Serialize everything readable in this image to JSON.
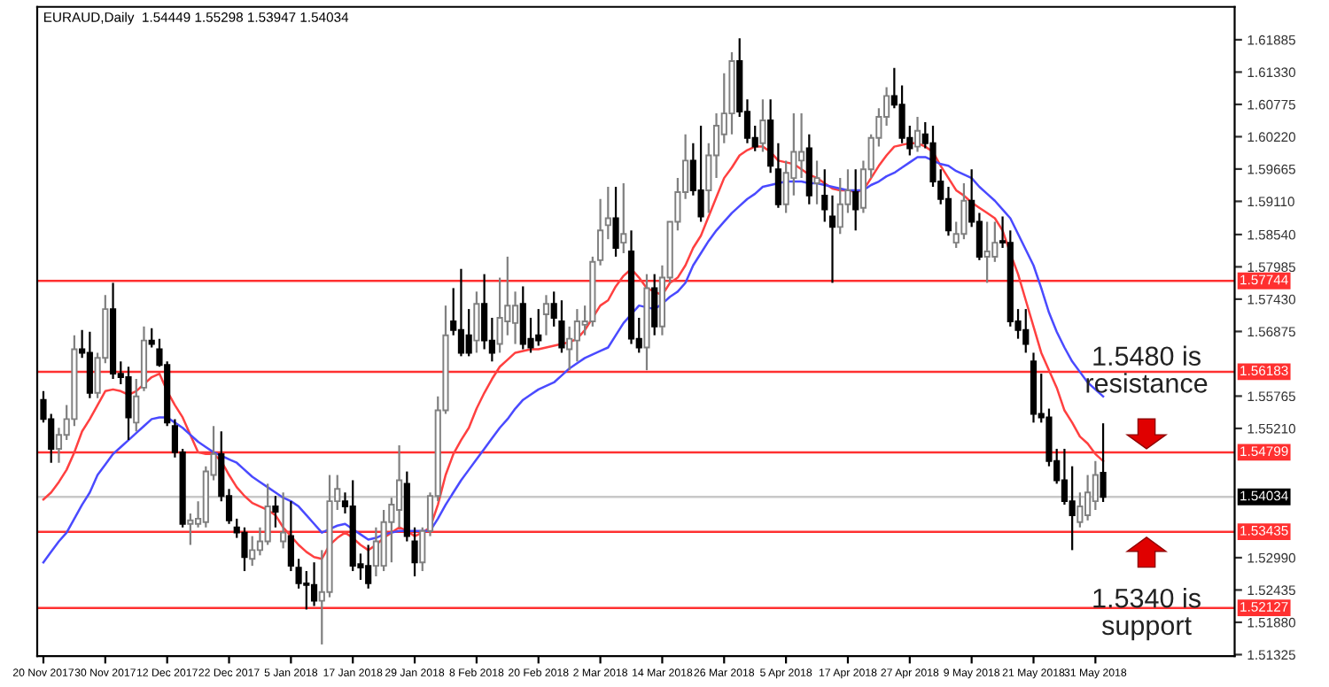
{
  "chart_data": {
    "type": "candlestick",
    "title": "EURAUD,Daily  1.54449 1.55298 1.53947 1.54034",
    "categories": [
      "20 Nov 2017",
      null,
      null,
      null,
      null,
      null,
      null,
      null,
      "30 Nov 2017",
      null,
      null,
      null,
      null,
      null,
      null,
      null,
      "12 Dec 2017",
      null,
      null,
      null,
      null,
      null,
      null,
      null,
      "22 Dec 2017",
      null,
      null,
      null,
      null,
      null,
      null,
      null,
      "5 Jan 2018",
      null,
      null,
      null,
      null,
      null,
      null,
      null,
      "17 Jan 2018",
      null,
      null,
      null,
      null,
      null,
      null,
      null,
      "29 Jan 2018",
      null,
      null,
      null,
      null,
      null,
      null,
      null,
      "8 Feb 2018",
      null,
      null,
      null,
      null,
      null,
      null,
      null,
      "20 Feb 2018",
      null,
      null,
      null,
      null,
      null,
      null,
      null,
      "2 Mar 2018",
      null,
      null,
      null,
      null,
      null,
      null,
      null,
      "14 Mar 2018",
      null,
      null,
      null,
      null,
      null,
      null,
      null,
      "26 Mar 2018",
      null,
      null,
      null,
      null,
      null,
      null,
      null,
      "5 Apr 2018",
      null,
      null,
      null,
      null,
      null,
      null,
      null,
      "17 Apr 2018",
      null,
      null,
      null,
      null,
      null,
      null,
      null,
      "27 Apr 2018",
      null,
      null,
      null,
      null,
      null,
      null,
      null,
      "9 May 2018",
      null,
      null,
      null,
      null,
      null,
      null,
      null,
      "21 May 2018",
      null,
      null,
      null,
      null,
      null,
      null,
      null,
      "31 May 2018",
      null
    ],
    "series": [
      {
        "color": "#000000",
        "colors": [
          "#000000",
          "#000000",
          "#ffffff",
          "#ffffff",
          "#ffffff",
          "#000000",
          "#000000",
          "#ffffff",
          "#ffffff",
          "#000000",
          "#000000",
          "#000000",
          "#ffffff",
          "#ffffff",
          "#000000",
          "#000000",
          "#000000",
          "#000000",
          "#000000",
          "#ffffff",
          "#ffffff",
          "#ffffff",
          "#ffffff",
          "#000000",
          "#000000",
          "#000000",
          "#000000",
          "#ffffff",
          "#ffffff",
          "#ffffff",
          "#000000",
          "#ffffff",
          "#000000",
          "#000000",
          "#000000",
          "#000000",
          "#ffffff",
          "#ffffff",
          "#ffffff",
          "#000000",
          "#000000",
          "#000000",
          "#000000",
          "#ffffff",
          "#ffffff",
          "#ffffff",
          "#ffffff",
          "#000000",
          "#000000",
          "#ffffff",
          "#ffffff",
          "#ffffff",
          "#ffffff",
          "#000000",
          "#000000",
          "#000000",
          "#ffffff",
          "#000000",
          "#000000",
          "#ffffff",
          "#ffffff",
          "#ffffff",
          "#000000",
          "#000000",
          "#000000",
          "#ffffff",
          "#000000",
          "#000000",
          "#ffffff",
          "#ffffff",
          "#ffffff",
          "#ffffff",
          "#ffffff",
          "#ffffff",
          "#000000",
          "#ffffff",
          "#000000",
          "#000000",
          "#ffffff",
          "#000000",
          "#ffffff",
          "#ffffff",
          "#ffffff",
          "#ffffff",
          "#000000",
          "#000000",
          "#ffffff",
          "#ffffff",
          "#ffffff",
          "#ffffff",
          "#000000",
          "#000000",
          "#000000",
          "#ffffff",
          "#000000",
          "#000000",
          "#ffffff",
          "#ffffff",
          "#ffffff",
          "#000000",
          "#ffffff",
          "#000000",
          "#000000",
          "#ffffff",
          "#ffffff",
          "#000000",
          "#ffffff",
          "#ffffff",
          "#ffffff",
          "#ffffff",
          "#000000",
          "#000000",
          "#000000",
          "#ffffff",
          "#000000",
          "#000000",
          "#000000",
          "#000000",
          "#ffffff",
          "#ffffff",
          "#000000",
          "#000000",
          "#ffffff",
          "#ffffff",
          "#000000",
          "#000000",
          "#000000",
          "#000000",
          "#000000",
          "#000000",
          "#000000",
          "#000000",
          "#000000",
          "#000000",
          "#ffffff",
          "#ffffff",
          "#ffffff",
          "#000000"
        ],
        "ohlc": [
          [
            1.557,
            1.5585,
            1.5531,
            1.5537
          ],
          [
            1.5537,
            1.5546,
            1.5462,
            1.5486
          ],
          [
            1.5486,
            1.5522,
            1.5462,
            1.551
          ],
          [
            1.551,
            1.5561,
            1.5501,
            1.5537
          ],
          [
            1.5537,
            1.5681,
            1.5525,
            1.5657
          ],
          [
            1.5657,
            1.569,
            1.5642,
            1.5651
          ],
          [
            1.5651,
            1.5687,
            1.5573,
            1.5582
          ],
          [
            1.5582,
            1.5651,
            1.5573,
            1.5642
          ],
          [
            1.5642,
            1.575,
            1.5633,
            1.5726
          ],
          [
            1.5726,
            1.5771,
            1.5606,
            1.5615
          ],
          [
            1.5615,
            1.5636,
            1.5597,
            1.5609
          ],
          [
            1.5609,
            1.5627,
            1.5501,
            1.554
          ],
          [
            1.5531,
            1.5606,
            1.5516,
            1.5576
          ],
          [
            1.5591,
            1.5696,
            1.5585,
            1.5672
          ],
          [
            1.5672,
            1.5693,
            1.566,
            1.5666
          ],
          [
            1.5657,
            1.5675,
            1.5627,
            1.563
          ],
          [
            1.563,
            1.5636,
            1.5525,
            1.5531
          ],
          [
            1.5525,
            1.5537,
            1.5471,
            1.548
          ],
          [
            1.548,
            1.5486,
            1.5351,
            1.5357
          ],
          [
            1.5357,
            1.5375,
            1.5321,
            1.5363
          ],
          [
            1.5357,
            1.5396,
            1.5351,
            1.5366
          ],
          [
            1.536,
            1.5456,
            1.5351,
            1.5447
          ],
          [
            1.5441,
            1.5525,
            1.5432,
            1.5477
          ],
          [
            1.5477,
            1.5516,
            1.5396,
            1.5405
          ],
          [
            1.5405,
            1.5417,
            1.5357,
            1.5363
          ],
          [
            1.5351,
            1.5366,
            1.5333,
            1.5342
          ],
          [
            1.5342,
            1.5351,
            1.5276,
            1.53
          ],
          [
            1.5297,
            1.5336,
            1.5285,
            1.5312
          ],
          [
            1.5312,
            1.5351,
            1.5303,
            1.5327
          ],
          [
            1.5327,
            1.5426,
            1.5321,
            1.5387
          ],
          [
            1.5387,
            1.5405,
            1.5351,
            1.5378
          ],
          [
            1.5327,
            1.5411,
            1.5315,
            1.5342
          ],
          [
            1.5336,
            1.5396,
            1.5276,
            1.5285
          ],
          [
            1.5282,
            1.5297,
            1.5246,
            1.5255
          ],
          [
            1.5255,
            1.5276,
            1.521,
            1.5252
          ],
          [
            1.5252,
            1.5291,
            1.5216,
            1.5225
          ],
          [
            1.5225,
            1.5312,
            1.515,
            1.524
          ],
          [
            1.524,
            1.5441,
            1.5231,
            1.5396
          ],
          [
            1.5396,
            1.5441,
            1.5381,
            1.5417
          ],
          [
            1.5396,
            1.5411,
            1.5375,
            1.5387
          ],
          [
            1.5387,
            1.5432,
            1.5276,
            1.5285
          ],
          [
            1.5288,
            1.5306,
            1.5261,
            1.5282
          ],
          [
            1.5285,
            1.5321,
            1.5246,
            1.5255
          ],
          [
            1.5285,
            1.5351,
            1.5267,
            1.5327
          ],
          [
            1.5285,
            1.5381,
            1.5276,
            1.536
          ],
          [
            1.536,
            1.5402,
            1.5291,
            1.539
          ],
          [
            1.5381,
            1.5492,
            1.5351,
            1.5432
          ],
          [
            1.5426,
            1.5447,
            1.5327,
            1.5336
          ],
          [
            1.5327,
            1.5351,
            1.5267,
            1.5291
          ],
          [
            1.5291,
            1.5351,
            1.5276,
            1.5345
          ],
          [
            1.5345,
            1.5411,
            1.5336,
            1.5405
          ],
          [
            1.5405,
            1.5576,
            1.5396,
            1.5552
          ],
          [
            1.5552,
            1.5732,
            1.5546,
            1.5681
          ],
          [
            1.5705,
            1.5762,
            1.5681,
            1.569
          ],
          [
            1.569,
            1.5795,
            1.5645,
            1.5651
          ],
          [
            1.5681,
            1.5726,
            1.5645,
            1.5651
          ],
          [
            1.5672,
            1.5756,
            1.5651,
            1.5735
          ],
          [
            1.5735,
            1.5786,
            1.5657,
            1.5672
          ],
          [
            1.5672,
            1.5711,
            1.5636,
            1.5651
          ],
          [
            1.5666,
            1.578,
            1.5651,
            1.5711
          ],
          [
            1.5705,
            1.5816,
            1.5681,
            1.5732
          ],
          [
            1.5702,
            1.5756,
            1.5666,
            1.5732
          ],
          [
            1.5735,
            1.5765,
            1.5657,
            1.5666
          ],
          [
            1.5675,
            1.5711,
            1.5651,
            1.566
          ],
          [
            1.5681,
            1.5726,
            1.5663,
            1.5672
          ],
          [
            1.5717,
            1.575,
            1.5681,
            1.5735
          ],
          [
            1.5735,
            1.5756,
            1.5696,
            1.5711
          ],
          [
            1.5705,
            1.5741,
            1.5651,
            1.566
          ],
          [
            1.5657,
            1.5696,
            1.5621,
            1.5675
          ],
          [
            1.5672,
            1.5726,
            1.5636,
            1.5705
          ],
          [
            1.5699,
            1.5732,
            1.5681,
            1.5705
          ],
          [
            1.5705,
            1.5816,
            1.5696,
            1.5807
          ],
          [
            1.581,
            1.5915,
            1.5801,
            1.5861
          ],
          [
            1.587,
            1.5936,
            1.5846,
            1.5882
          ],
          [
            1.5882,
            1.5936,
            1.5816,
            1.5831
          ],
          [
            1.584,
            1.5942,
            1.5822,
            1.5855
          ],
          [
            1.5825,
            1.5861,
            1.5666,
            1.5675
          ],
          [
            1.5675,
            1.5711,
            1.5651,
            1.566
          ],
          [
            1.566,
            1.5786,
            1.5621,
            1.5762
          ],
          [
            1.5762,
            1.5786,
            1.5681,
            1.5696
          ],
          [
            1.5696,
            1.5801,
            1.5681,
            1.578
          ],
          [
            1.578,
            1.5876,
            1.5771,
            1.5876
          ],
          [
            1.5876,
            1.5951,
            1.5861,
            1.5927
          ],
          [
            1.5927,
            1.6026,
            1.5915,
            1.5981
          ],
          [
            1.5981,
            1.6011,
            1.5921,
            1.593
          ],
          [
            1.593,
            1.6041,
            1.5876,
            1.5885
          ],
          [
            1.593,
            1.6011,
            1.5891,
            1.599
          ],
          [
            1.599,
            1.6062,
            1.5951,
            1.6041
          ],
          [
            1.6026,
            1.6131,
            1.6011,
            1.6062
          ],
          [
            1.6062,
            1.6167,
            1.6026,
            1.6152
          ],
          [
            1.6152,
            1.6191,
            1.6056,
            1.6065
          ],
          [
            1.6065,
            1.6086,
            1.6011,
            1.602
          ],
          [
            1.602,
            1.6041,
            1.5997,
            1.6005
          ],
          [
            1.6011,
            1.6086,
            1.5996,
            1.605
          ],
          [
            1.605,
            1.6086,
            1.596,
            1.5972
          ],
          [
            1.5966,
            1.6011,
            1.59,
            1.5906
          ],
          [
            1.5906,
            1.5981,
            1.5891,
            1.596
          ],
          [
            1.5951,
            1.6062,
            1.5921,
            1.5996
          ],
          [
            1.5981,
            1.6062,
            1.5951,
            1.5996
          ],
          [
            1.6002,
            1.6026,
            1.5906,
            1.5921
          ],
          [
            1.5942,
            1.5981,
            1.5906,
            1.5951
          ],
          [
            1.5921,
            1.5966,
            1.5876,
            1.5897
          ],
          [
            1.5885,
            1.5921,
            1.5771,
            1.5867
          ],
          [
            1.5867,
            1.5951,
            1.5855,
            1.5906
          ],
          [
            1.5906,
            1.5966,
            1.5891,
            1.593
          ],
          [
            1.5927,
            1.5966,
            1.5861,
            1.5897
          ],
          [
            1.59,
            1.5981,
            1.5891,
            1.5966
          ],
          [
            1.5966,
            1.6026,
            1.5951,
            1.602
          ],
          [
            1.602,
            1.6071,
            1.6005,
            1.6056
          ],
          [
            1.6056,
            1.6107,
            1.6041,
            1.6092
          ],
          [
            1.6092,
            1.614,
            1.6071,
            1.6077
          ],
          [
            1.6077,
            1.611,
            1.6011,
            1.602
          ],
          [
            1.602,
            1.6041,
            1.599,
            1.6002
          ],
          [
            1.6005,
            1.6056,
            1.5996,
            1.6032
          ],
          [
            1.6026,
            1.6047,
            1.6002,
            1.6011
          ],
          [
            1.6011,
            1.6041,
            1.5936,
            1.5945
          ],
          [
            1.5945,
            1.5966,
            1.5906,
            1.5915
          ],
          [
            1.5915,
            1.5936,
            1.5852,
            1.5861
          ],
          [
            1.584,
            1.5876,
            1.5831,
            1.5855
          ],
          [
            1.5855,
            1.5942,
            1.5846,
            1.5912
          ],
          [
            1.5912,
            1.5966,
            1.5867,
            1.5876
          ],
          [
            1.5876,
            1.5891,
            1.581,
            1.5816
          ],
          [
            1.5816,
            1.5876,
            1.5771,
            1.5825
          ],
          [
            1.5816,
            1.5876,
            1.5807,
            1.584
          ],
          [
            1.5843,
            1.5885,
            1.5831,
            1.584
          ],
          [
            1.584,
            1.5861,
            1.5696,
            1.5705
          ],
          [
            1.5705,
            1.5726,
            1.5675,
            1.569
          ],
          [
            1.569,
            1.5726,
            1.5651,
            1.5666
          ],
          [
            1.5636,
            1.5651,
            1.5531,
            1.5546
          ],
          [
            1.5546,
            1.5615,
            1.5531,
            1.554
          ],
          [
            1.554,
            1.5555,
            1.5456,
            1.5465
          ],
          [
            1.5465,
            1.5486,
            1.5426,
            1.5432
          ],
          [
            1.5432,
            1.5486,
            1.539,
            1.5396
          ],
          [
            1.5396,
            1.5456,
            1.5312,
            1.5372
          ],
          [
            1.536,
            1.5411,
            1.5351,
            1.5387
          ],
          [
            1.5372,
            1.5441,
            1.5363,
            1.5411
          ],
          [
            1.5396,
            1.5465,
            1.5381,
            1.5441
          ],
          [
            1.54449,
            1.55298,
            1.53947,
            1.54034
          ]
        ]
      },
      {
        "type": "line",
        "color": "#ff4040",
        "values": [
          1.5399,
          1.5411,
          1.5429,
          1.545,
          1.548,
          1.5516,
          1.5537,
          1.5561,
          1.5585,
          1.5588,
          1.5585,
          1.5579,
          1.5585,
          1.5597,
          1.5609,
          1.5615,
          1.5585,
          1.5561,
          1.554,
          1.551,
          1.548,
          1.5477,
          1.5477,
          1.5465,
          1.5441,
          1.542,
          1.5405,
          1.5393,
          1.5387,
          1.5381,
          1.5372,
          1.5351,
          1.5336,
          1.5321,
          1.5309,
          1.53,
          1.5297,
          1.5321,
          1.5333,
          1.5342,
          1.5333,
          1.5321,
          1.5312,
          1.5321,
          1.5333,
          1.5342,
          1.5351,
          1.5345,
          1.5336,
          1.5342,
          1.5351,
          1.539,
          1.5441,
          1.5477,
          1.5501,
          1.5522,
          1.5555,
          1.5582,
          1.5606,
          1.5627,
          1.5639,
          1.5651,
          1.5654,
          1.5657,
          1.5657,
          1.566,
          1.5663,
          1.5666,
          1.5669,
          1.5675,
          1.569,
          1.5711,
          1.5732,
          1.5741,
          1.5765,
          1.5783,
          1.5795,
          1.578,
          1.5762,
          1.5756,
          1.575,
          1.5771,
          1.578,
          1.5801,
          1.5831,
          1.5852,
          1.5885,
          1.5918,
          1.5951,
          1.5969,
          1.599,
          1.5999,
          1.6005,
          1.6005,
          1.5996,
          1.5981,
          1.5978,
          1.5975,
          1.5966,
          1.5957,
          1.5951,
          1.5942,
          1.5933,
          1.593,
          1.593,
          1.5927,
          1.593,
          1.5951,
          1.5972,
          1.599,
          1.6005,
          1.6008,
          1.6011,
          1.6011,
          1.6005,
          1.5996,
          1.5972,
          1.5951,
          1.593,
          1.5921,
          1.5909,
          1.59,
          1.5891,
          1.5882,
          1.5861,
          1.5822,
          1.5786,
          1.5741,
          1.5696,
          1.5651,
          1.5621,
          1.5591,
          1.5552,
          1.5531,
          1.5507,
          1.5495,
          1.5477,
          1.5465
        ]
      },
      {
        "type": "line",
        "color": "#4a4aff",
        "values": [
          1.5291,
          1.5309,
          1.5327,
          1.5342,
          1.5366,
          1.539,
          1.5411,
          1.5441,
          1.5459,
          1.5477,
          1.5489,
          1.5501,
          1.5513,
          1.5525,
          1.5537,
          1.554,
          1.554,
          1.5531,
          1.5522,
          1.551,
          1.5498,
          1.5489,
          1.548,
          1.5474,
          1.5468,
          1.5462,
          1.545,
          1.5438,
          1.5429,
          1.542,
          1.5411,
          1.5402,
          1.5396,
          1.5387,
          1.5372,
          1.5357,
          1.5342,
          1.5348,
          1.5354,
          1.5357,
          1.5348,
          1.5339,
          1.533,
          1.5333,
          1.5339,
          1.5342,
          1.5345,
          1.5345,
          1.5345,
          1.5345,
          1.5345,
          1.5366,
          1.539,
          1.5411,
          1.5432,
          1.545,
          1.5468,
          1.5486,
          1.5504,
          1.5522,
          1.5537,
          1.5555,
          1.557,
          1.5579,
          1.5588,
          1.5594,
          1.56,
          1.5612,
          1.5624,
          1.5633,
          1.5642,
          1.5648,
          1.5654,
          1.566,
          1.5681,
          1.5702,
          1.5717,
          1.5732,
          1.5729,
          1.5726,
          1.5735,
          1.5747,
          1.5756,
          1.5771,
          1.5801,
          1.5822,
          1.5843,
          1.5861,
          1.5876,
          1.5891,
          1.5903,
          1.5915,
          1.5924,
          1.5936,
          1.5939,
          1.5942,
          1.5945,
          1.5945,
          1.5945,
          1.5942,
          1.5942,
          1.5939,
          1.5936,
          1.5933,
          1.593,
          1.593,
          1.593,
          1.5939,
          1.5945,
          1.5954,
          1.596,
          1.5969,
          1.5978,
          1.5987,
          1.5987,
          1.5981,
          1.5975,
          1.5972,
          1.5963,
          1.5957,
          1.5951,
          1.5936,
          1.5924,
          1.5912,
          1.5897,
          1.5882,
          1.5855,
          1.5828,
          1.5801,
          1.5762,
          1.572,
          1.5687,
          1.566,
          1.5636,
          1.5618,
          1.56,
          1.5588,
          1.5576
        ]
      }
    ],
    "ylim": [
      1.513,
      1.6245
    ],
    "yticks": [
      1.51325,
      {
        "value": 1.5188,
        "label": "1.51880"
      },
      1.52435,
      {
        "value": 1.5299,
        "label": "1.52990"
      },
      {
        "value": 1.5521,
        "label": "1.55210"
      },
      1.55765,
      1.56875,
      {
        "value": 1.5743,
        "label": "1.57430"
      },
      1.57985,
      {
        "value": 1.5854,
        "label": "1.58540"
      },
      {
        "value": 1.5911,
        "label": "1.59110"
      },
      1.59665,
      {
        "value": 1.6022,
        "label": "1.60220"
      },
      1.60775,
      {
        "value": 1.6133,
        "label": "1.61330"
      },
      1.61885
    ],
    "ref_lines": [
      {
        "axis": "y",
        "value": 1.57744,
        "label": "1.57744",
        "color": "#ff3030"
      },
      {
        "axis": "y",
        "value": 1.56183,
        "label": "1.56183",
        "color": "#ff3030"
      },
      {
        "axis": "y",
        "value": 1.54799,
        "label": "1.54799",
        "color": "#ff3030"
      },
      {
        "axis": "y",
        "value": 1.54034,
        "label": "1.54034",
        "color": "#c8c8c8"
      },
      {
        "axis": "y",
        "value": 1.53435,
        "label": "1.53435",
        "color": "#ff3030"
      },
      {
        "axis": "y",
        "value": 1.52127,
        "label": "1.52127",
        "color": "#ff3030"
      }
    ],
    "annotations": [
      {
        "text": "1.5480 is\nresistance",
        "y": 1.548
      },
      {
        "text": "1.5340 is\nsupport",
        "y": 1.534
      }
    ],
    "grid": false,
    "legend": false
  }
}
